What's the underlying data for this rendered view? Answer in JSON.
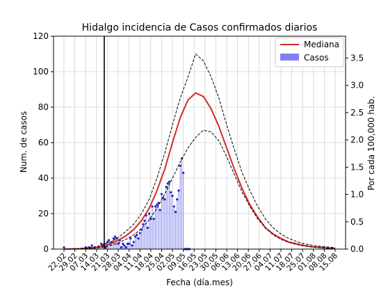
{
  "chart_data": {
    "type": "line",
    "title": "Hidalgo incidencia de Casos confirmados diarios",
    "xlabel": "Fecha (día.mes)",
    "ylabel": "Num. de casos",
    "y2label": "Por cada 100,000 hab.",
    "ylim": [
      0,
      120
    ],
    "y2lim": [
      0,
      3.9
    ],
    "yticks": [
      0,
      20,
      40,
      60,
      80,
      100,
      120
    ],
    "y2ticks": [
      "0.0",
      "0.5",
      "1.0",
      "1.5",
      "2.0",
      "2.5",
      "3.0",
      "3.5"
    ],
    "xticks": [
      "22.02",
      "29.02",
      "07.03",
      "14.03",
      "21.03",
      "28.03",
      "04.04",
      "11.04",
      "18.04",
      "25.04",
      "02.05",
      "09.05",
      "16.05",
      "23.05",
      "30.05",
      "06.06",
      "13.06",
      "20.06",
      "27.06",
      "04.07",
      "11.07",
      "18.07",
      "25.07",
      "01.08",
      "08.08",
      "15.08"
    ],
    "grid": true,
    "legend_position": "top-right",
    "vertical_marker_day": 26,
    "series": [
      {
        "name": "Mediana",
        "type": "line",
        "color": "#d62728",
        "x": [
          0,
          10,
          20,
          25,
          30,
          35,
          40,
          45,
          50,
          55,
          60,
          65,
          70,
          75,
          80,
          85,
          90,
          95,
          100,
          105,
          110,
          115,
          120,
          125,
          130,
          135,
          140,
          145,
          150,
          155,
          160,
          165,
          170,
          175
        ],
        "values": [
          0,
          0.2,
          0.8,
          1.5,
          3,
          5,
          7.5,
          11,
          16,
          23,
          33,
          45,
          60,
          74,
          84,
          88,
          86,
          79,
          69,
          57,
          45,
          34,
          25,
          18,
          12,
          8.5,
          6,
          4,
          3,
          2,
          1.3,
          1,
          0.6,
          0.4
        ]
      },
      {
        "name": "upper_bound",
        "type": "line-dashed",
        "color": "#000000",
        "x": [
          0,
          10,
          20,
          25,
          30,
          35,
          40,
          45,
          50,
          55,
          60,
          65,
          70,
          75,
          80,
          85,
          90,
          95,
          100,
          105,
          110,
          115,
          120,
          125,
          130,
          135,
          140,
          145,
          150,
          155,
          160,
          165,
          170,
          175
        ],
        "values": [
          0,
          0.3,
          1.2,
          2.3,
          4,
          6.5,
          10,
          14,
          20,
          28,
          40,
          54,
          70,
          85,
          97,
          110,
          106,
          97,
          85,
          70,
          56,
          43,
          33,
          24,
          17,
          12,
          8.5,
          6,
          4.3,
          3,
          2.2,
          1.6,
          1.2,
          0.8
        ]
      },
      {
        "name": "lower_bound",
        "type": "line-dashed",
        "color": "#000000",
        "x": [
          0,
          10,
          20,
          25,
          30,
          35,
          40,
          45,
          50,
          55,
          60,
          65,
          70,
          75,
          80,
          85,
          90,
          95,
          100,
          105,
          110,
          115,
          120,
          125,
          130,
          135,
          140,
          145,
          150,
          155,
          160,
          165,
          170,
          175
        ],
        "values": [
          0,
          0.1,
          0.5,
          1,
          2,
          3.5,
          5.5,
          8,
          11.5,
          16.5,
          23,
          31,
          40,
          49,
          57,
          63,
          67,
          66,
          61,
          52,
          42,
          32,
          24,
          17,
          12,
          8,
          5.5,
          3.8,
          2.6,
          1.8,
          1.2,
          0.8,
          0.5,
          0.3
        ]
      },
      {
        "name": "Casos",
        "type": "stem",
        "color": "#5555ee",
        "x": [
          0,
          14,
          16,
          18,
          20,
          22,
          24,
          25,
          26,
          27,
          28,
          29,
          30,
          31,
          32,
          33,
          34,
          35,
          36,
          37,
          38,
          39,
          40,
          41,
          42,
          43,
          44,
          45,
          46,
          47,
          48,
          49,
          50,
          51,
          52,
          53,
          54,
          55,
          56,
          57,
          58,
          59,
          60,
          61,
          62,
          63,
          64,
          65,
          66,
          67,
          68,
          69,
          70,
          71,
          72,
          73,
          74,
          75,
          76,
          77,
          78,
          79,
          80,
          81
        ],
        "values": [
          1,
          1,
          1,
          2,
          1,
          1,
          3,
          2,
          3,
          1,
          4,
          5,
          3,
          4,
          6,
          7,
          6,
          3,
          5,
          1,
          3,
          2,
          1,
          3,
          3,
          6,
          2,
          4,
          7,
          8,
          6,
          9,
          11,
          14,
          16,
          19,
          12,
          20,
          17,
          24,
          17,
          24,
          25,
          26,
          22,
          31,
          29,
          28,
          35,
          37,
          38,
          32,
          30,
          24,
          21,
          28,
          33,
          47,
          51,
          43,
          0,
          0,
          0,
          0
        ]
      }
    ]
  }
}
